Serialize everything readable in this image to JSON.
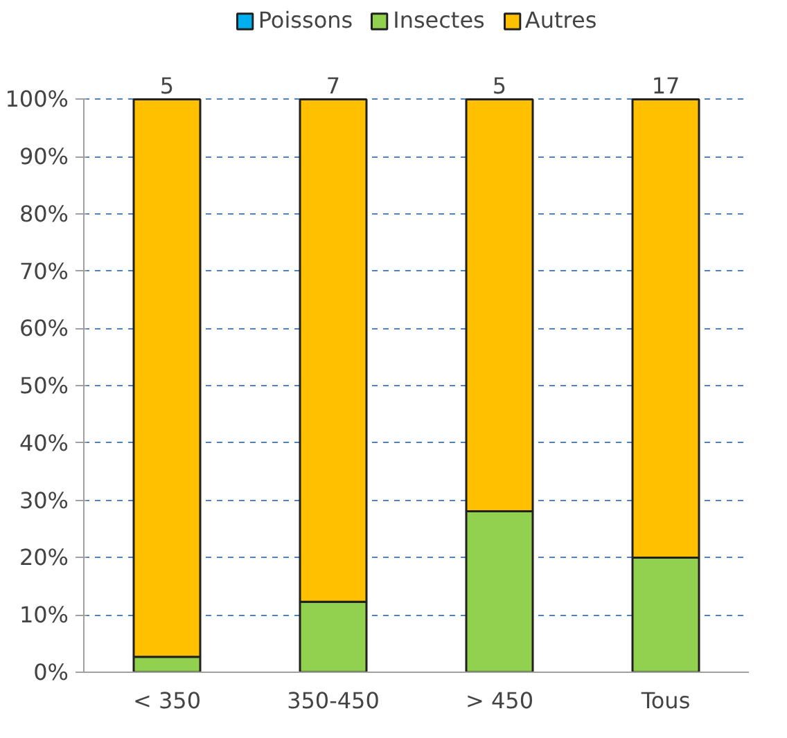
{
  "chart_data": {
    "type": "bar",
    "stacked": true,
    "categories": [
      "< 350",
      "350-450",
      "> 450",
      "Tous"
    ],
    "series": [
      {
        "name": "Poissons",
        "color": "#00b0f0",
        "values": [
          0,
          0,
          0,
          0
        ]
      },
      {
        "name": "Insectes",
        "color": "#92d050",
        "values": [
          2.7,
          12.3,
          28.1,
          20
        ]
      },
      {
        "name": "Autres",
        "color": "#ffc000",
        "values": [
          97.3,
          87.7,
          71.9,
          80
        ]
      }
    ],
    "annotations": [
      {
        "text": "5",
        "x": "< 350",
        "y": 100
      },
      {
        "text": "7",
        "x": "350-450",
        "y": 100
      },
      {
        "text": "5",
        "x": "> 450",
        "y": 100
      },
      {
        "text": "17",
        "x": "Tous",
        "y": 100
      }
    ],
    "ylim": [
      0,
      100
    ],
    "yticks": [
      {
        "value": 0,
        "label": "0%"
      },
      {
        "value": 10,
        "label": "10%"
      },
      {
        "value": 20,
        "label": "20%"
      },
      {
        "value": 30,
        "label": "30%"
      },
      {
        "value": 40,
        "label": "40%"
      },
      {
        "value": 50,
        "label": "50%"
      },
      {
        "value": 60,
        "label": "60%"
      },
      {
        "value": 70,
        "label": "70%"
      },
      {
        "value": 80,
        "label": "80%"
      },
      {
        "value": 90,
        "label": "90%"
      },
      {
        "value": 100,
        "label": "100%"
      }
    ],
    "grid": "y",
    "legend": "top"
  }
}
